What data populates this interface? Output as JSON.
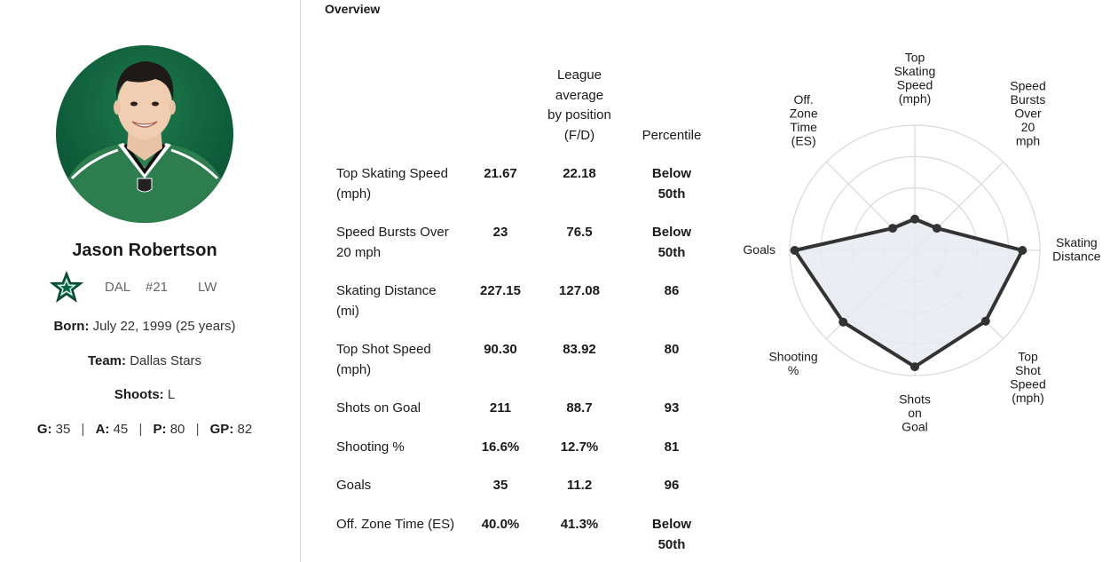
{
  "player": {
    "name": "Jason Robertson",
    "team_abbr": "DAL",
    "jersey": "#21",
    "position": "LW",
    "born_label": "Born:",
    "born_value": "July 22, 1999 (25 years)",
    "team_label": "Team:",
    "team_value": "Dallas Stars",
    "shoots_label": "Shoots:",
    "shoots_value": "L",
    "stats": {
      "g_label": "G:",
      "g_value": "35",
      "a_label": "A:",
      "a_value": "45",
      "p_label": "P:",
      "p_value": "80",
      "gp_label": "GP:",
      "gp_value": "82"
    },
    "logo_icon": "dallas-stars-star-icon",
    "colors": {
      "team_green": "#006847",
      "avatar_bg": "#0f5f3b"
    }
  },
  "overview": {
    "title": "Overview",
    "headers": {
      "league_avg": [
        "League",
        "average",
        "by position",
        "(F/D)"
      ],
      "percentile": "Percentile"
    },
    "rows": [
      {
        "label": [
          "Top Skating Speed",
          "(mph)"
        ],
        "player": "21.67",
        "avg": "22.18",
        "pct": [
          "Below",
          "50th"
        ]
      },
      {
        "label": [
          "Speed Bursts Over",
          "20 mph"
        ],
        "player": "23",
        "avg": "76.5",
        "pct": [
          "Below",
          "50th"
        ]
      },
      {
        "label": [
          "Skating Distance",
          "(mi)"
        ],
        "player": "227.15",
        "avg": "127.08",
        "pct": [
          "86"
        ]
      },
      {
        "label": [
          "Top Shot Speed",
          "(mph)"
        ],
        "player": "90.30",
        "avg": "83.92",
        "pct": [
          "80"
        ]
      },
      {
        "label": [
          "Shots on Goal"
        ],
        "player": "211",
        "avg": "88.7",
        "pct": [
          "93"
        ]
      },
      {
        "label": [
          "Shooting %"
        ],
        "player": "16.6%",
        "avg": "12.7%",
        "pct": [
          "81"
        ]
      },
      {
        "label": [
          "Goals"
        ],
        "player": "35",
        "avg": "11.2",
        "pct": [
          "96"
        ]
      },
      {
        "label": [
          "Off. Zone Time (ES)"
        ],
        "player": "40.0%",
        "avg": "41.3%",
        "pct": [
          "Below",
          "50th"
        ]
      }
    ]
  },
  "chart_data": {
    "type": "radar",
    "axes": [
      [
        "Top",
        "Skating",
        "Speed",
        "(mph)"
      ],
      [
        "Speed",
        "Bursts",
        "Over",
        "20",
        "mph"
      ],
      [
        "Skating",
        "Distance"
      ],
      [
        "Top",
        "Shot",
        "Speed",
        "(mph)"
      ],
      [
        "Shots",
        "on",
        "Goal"
      ],
      [
        "Shooting",
        "%"
      ],
      [
        "Goals"
      ],
      [
        "Off.",
        "Zone",
        "Time",
        "(ES)"
      ]
    ],
    "values": [
      0.25,
      0.25,
      0.86,
      0.8,
      0.93,
      0.81,
      0.96,
      0.25
    ],
    "range": [
      0,
      1
    ],
    "rings": 4,
    "colors": {
      "line": "#333333",
      "fill": "#e6eaee",
      "grid": "#d9d9d9"
    }
  }
}
